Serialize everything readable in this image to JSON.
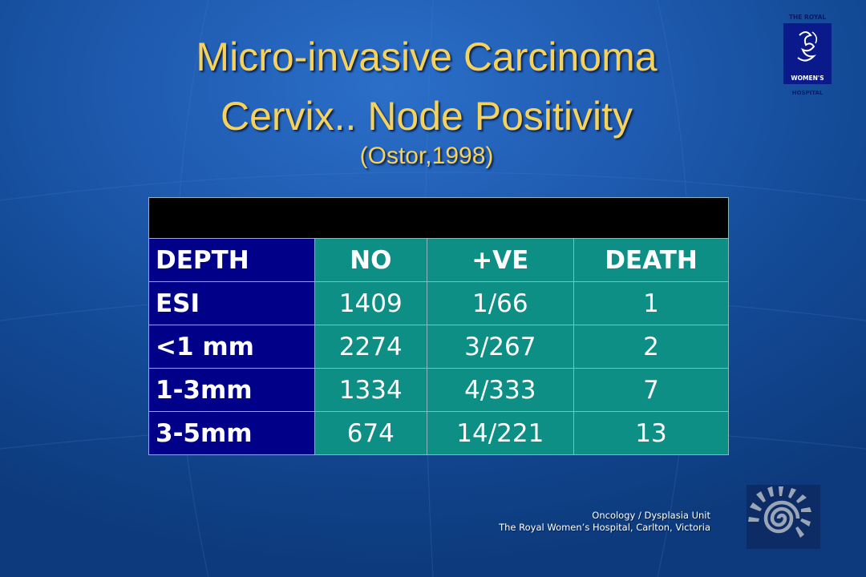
{
  "slide": {
    "title_line1": "Micro-invasive Carcinoma",
    "title_line2": "Cervix.. Node Positivity",
    "citation": "(Ostor,1998)"
  },
  "table": {
    "headers": [
      "DEPTH",
      "NO",
      "+VE",
      "DEATH"
    ],
    "rows": [
      [
        "ESI",
        "1409",
        "1/66",
        "1"
      ],
      [
        "<1 mm",
        "2274",
        "3/267",
        "2"
      ],
      [
        "1-3mm",
        "1334",
        "4/333",
        "7"
      ],
      [
        "3-5mm",
        "674",
        "14/221",
        "13"
      ]
    ]
  },
  "footer": {
    "line1": "Oncology / Dysplasia Unit",
    "line2": "The Royal Women’s Hospital, Carlton, Victoria"
  },
  "logo": {
    "top_text": "THE ROYAL",
    "mid_text": "WOMEN'S",
    "bottom_text": "HOSPITAL"
  },
  "colors": {
    "title": "#f4d25c",
    "label_cells": "#000088",
    "value_cells": "#0e8f86"
  }
}
